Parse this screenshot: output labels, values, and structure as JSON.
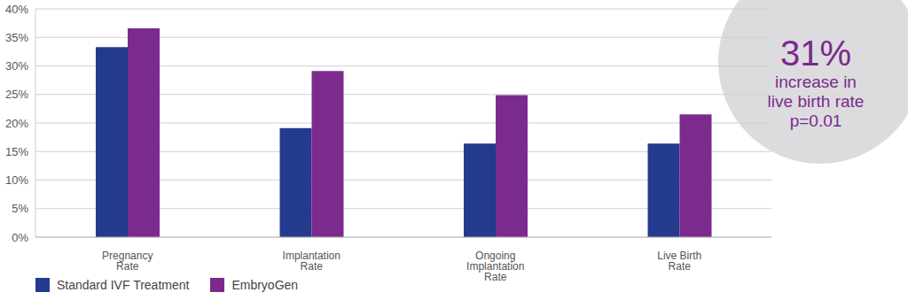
{
  "chart_data": {
    "type": "bar",
    "categories": [
      "Pregnancy Rate",
      "Implantation Rate",
      "Ongoing Implantation Rate",
      "Live Birth Rate"
    ],
    "series": [
      {
        "name": "Standard IVF Treatment",
        "color": "#233a8e",
        "values": [
          33.3,
          19.1,
          16.4,
          16.4
        ]
      },
      {
        "name": "EmbryoGen",
        "color": "#7b2a8e",
        "values": [
          36.6,
          29.1,
          24.9,
          21.5
        ]
      }
    ],
    "ylim": [
      0,
      40
    ],
    "yticks": [
      {
        "value": 0,
        "label": "0%"
      },
      {
        "value": 5,
        "label": "5%"
      },
      {
        "value": 10,
        "label": "10%"
      },
      {
        "value": 15,
        "label": "15%"
      },
      {
        "value": 20,
        "label": "20%"
      },
      {
        "value": 25,
        "label": "25%"
      },
      {
        "value": 30,
        "label": "30%"
      },
      {
        "value": 35,
        "label": "35%"
      },
      {
        "value": 40,
        "label": "40%"
      }
    ],
    "grid": true,
    "legend": "lower left",
    "annotations": [
      "31%",
      "increase in live birth rate",
      "p=0.01"
    ]
  }
}
